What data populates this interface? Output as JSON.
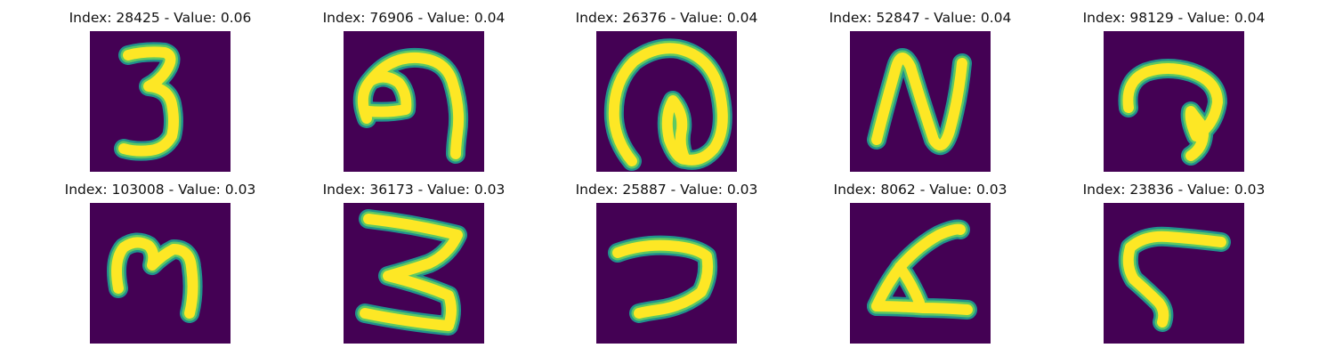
{
  "colors": {
    "background": "#440154",
    "stroke_core": "#fde725",
    "stroke_edge": "#21918c",
    "stroke_mid": "#5ec962"
  },
  "panels": [
    {
      "title": "Index: 28425 - Value: 0.06",
      "glyph": "digit-three-icon"
    },
    {
      "title": "Index: 76906 - Value: 0.04",
      "glyph": "hook-nine-icon"
    },
    {
      "title": "Index: 26376 - Value: 0.04",
      "glyph": "at-loop-icon"
    },
    {
      "title": "Index: 52847 - Value: 0.04",
      "glyph": "letter-n-icon"
    },
    {
      "title": "Index: 98129 - Value: 0.04",
      "glyph": "curl-hook-icon"
    },
    {
      "title": "Index: 103008 - Value: 0.03",
      "glyph": "sideways-m-icon"
    },
    {
      "title": "Index: 36173 - Value: 0.03",
      "glyph": "zigzag-three-icon"
    },
    {
      "title": "Index: 25887 - Value: 0.03",
      "glyph": "hook-seven-icon"
    },
    {
      "title": "Index: 8062 - Value: 0.03",
      "glyph": "ramp-four-icon"
    },
    {
      "title": "Index: 23836 - Value: 0.03",
      "glyph": "bent-seven-icon"
    }
  ]
}
